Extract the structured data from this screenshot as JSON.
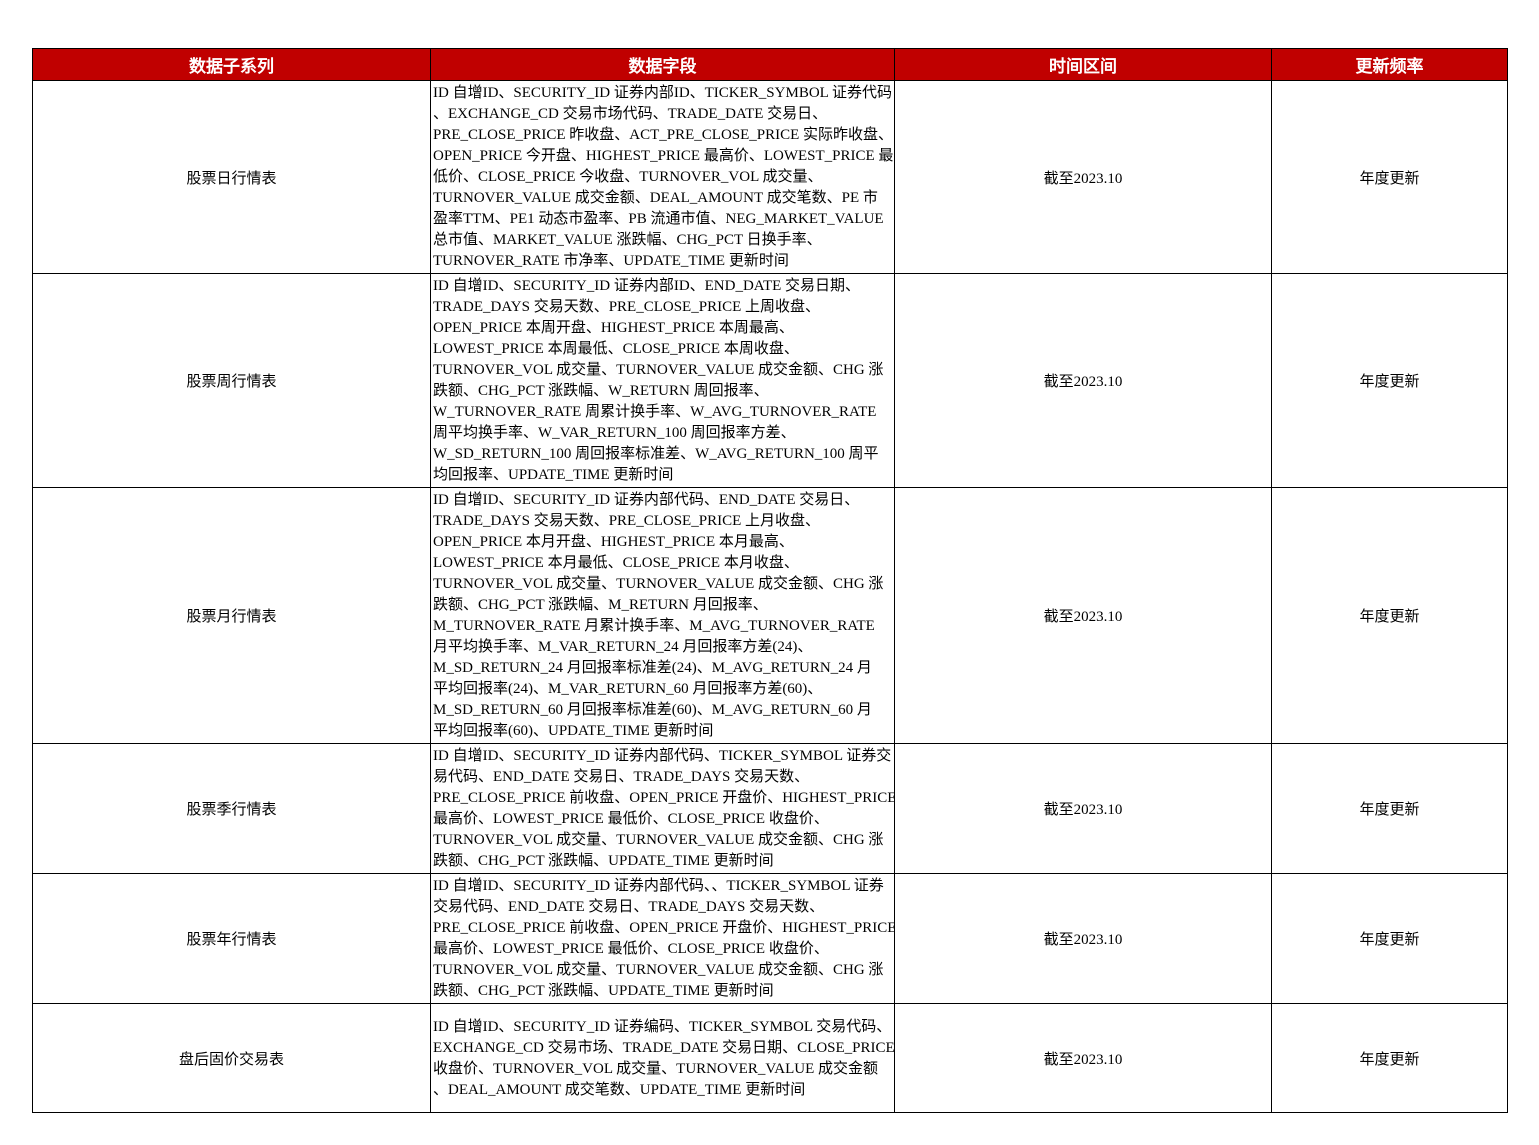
{
  "header": {
    "col_series": "数据子系列",
    "col_fields": "数据字段",
    "col_period": "时间区间",
    "col_frequency": "更新频率"
  },
  "header_color": "#c00000",
  "rows": [
    {
      "series": "股票日行情表",
      "fields": [
        "ID 自增ID、SECURITY_ID 证券内部ID、TICKER_SYMBOL 证券代码",
        "、EXCHANGE_CD 交易市场代码、TRADE_DATE 交易日、",
        "PRE_CLOSE_PRICE 昨收盘、ACT_PRE_CLOSE_PRICE 实际昨收盘、",
        "OPEN_PRICE 今开盘、HIGHEST_PRICE 最高价、LOWEST_PRICE 最",
        "低价、CLOSE_PRICE 今收盘、TURNOVER_VOL 成交量、",
        "TURNOVER_VALUE 成交金额、DEAL_AMOUNT 成交笔数、PE 市",
        "盈率TTM、PE1 动态市盈率、PB 流通市值、NEG_MARKET_VALUE",
        "总市值、MARKET_VALUE 涨跌幅、CHG_PCT 日换手率、",
        "TURNOVER_RATE 市净率、UPDATE_TIME 更新时间"
      ],
      "period": "截至2023.10",
      "frequency": "年度更新"
    },
    {
      "series": "股票周行情表",
      "fields": [
        "ID 自增ID、SECURITY_ID 证券内部ID、END_DATE 交易日期、",
        "TRADE_DAYS 交易天数、PRE_CLOSE_PRICE 上周收盘、",
        "OPEN_PRICE 本周开盘、HIGHEST_PRICE 本周最高、",
        "LOWEST_PRICE 本周最低、CLOSE_PRICE 本周收盘、",
        "TURNOVER_VOL 成交量、TURNOVER_VALUE 成交金额、CHG 涨",
        "跌额、CHG_PCT 涨跌幅、W_RETURN 周回报率、",
        "W_TURNOVER_RATE 周累计换手率、W_AVG_TURNOVER_RATE",
        "周平均换手率、W_VAR_RETURN_100 周回报率方差、",
        "W_SD_RETURN_100 周回报率标准差、W_AVG_RETURN_100 周平",
        "均回报率、UPDATE_TIME 更新时间"
      ],
      "period": "截至2023.10",
      "frequency": "年度更新"
    },
    {
      "series": "股票月行情表",
      "fields": [
        "ID 自增ID、SECURITY_ID 证券内部代码、END_DATE 交易日、",
        "TRADE_DAYS 交易天数、PRE_CLOSE_PRICE 上月收盘、",
        "OPEN_PRICE 本月开盘、HIGHEST_PRICE 本月最高、",
        "LOWEST_PRICE 本月最低、CLOSE_PRICE 本月收盘、",
        "TURNOVER_VOL 成交量、TURNOVER_VALUE 成交金额、CHG 涨",
        "跌额、CHG_PCT 涨跌幅、M_RETURN 月回报率、",
        "M_TURNOVER_RATE 月累计换手率、M_AVG_TURNOVER_RATE",
        "月平均换手率、M_VAR_RETURN_24 月回报率方差(24)、",
        "M_SD_RETURN_24 月回报率标准差(24)、M_AVG_RETURN_24 月",
        "平均回报率(24)、M_VAR_RETURN_60 月回报率方差(60)、",
        "M_SD_RETURN_60 月回报率标准差(60)、M_AVG_RETURN_60 月",
        "平均回报率(60)、UPDATE_TIME 更新时间"
      ],
      "period": "截至2023.10",
      "frequency": "年度更新"
    },
    {
      "series": "股票季行情表",
      "fields": [
        "ID 自增ID、SECURITY_ID 证券内部代码、TICKER_SYMBOL 证券交",
        "易代码、END_DATE 交易日、TRADE_DAYS 交易天数、",
        "PRE_CLOSE_PRICE 前收盘、OPEN_PRICE 开盘价、HIGHEST_PRICE",
        "最高价、LOWEST_PRICE 最低价、CLOSE_PRICE 收盘价、",
        "TURNOVER_VOL 成交量、TURNOVER_VALUE 成交金额、CHG 涨",
        "跌额、CHG_PCT 涨跌幅、UPDATE_TIME 更新时间"
      ],
      "period": "截至2023.10",
      "frequency": "年度更新"
    },
    {
      "series": "股票年行情表",
      "fields": [
        "ID 自增ID、SECURITY_ID 证券内部代码、、TICKER_SYMBOL 证券",
        "交易代码、END_DATE 交易日、TRADE_DAYS 交易天数、",
        "PRE_CLOSE_PRICE 前收盘、OPEN_PRICE 开盘价、HIGHEST_PRICE",
        "最高价、LOWEST_PRICE 最低价、CLOSE_PRICE 收盘价、",
        "TURNOVER_VOL 成交量、TURNOVER_VALUE 成交金额、CHG 涨",
        "跌额、CHG_PCT 涨跌幅、UPDATE_TIME 更新时间"
      ],
      "period": "截至2023.10",
      "frequency": "年度更新"
    },
    {
      "series": "盘后固价交易表",
      "fields": [
        "ID 自增ID、SECURITY_ID 证券编码、TICKER_SYMBOL 交易代码、",
        "EXCHANGE_CD 交易市场、TRADE_DATE 交易日期、CLOSE_PRICE",
        "收盘价、TURNOVER_VOL 成交量、TURNOVER_VALUE 成交金额",
        "、DEAL_AMOUNT 成交笔数、UPDATE_TIME 更新时间"
      ],
      "period": "截至2023.10",
      "frequency": "年度更新"
    }
  ]
}
